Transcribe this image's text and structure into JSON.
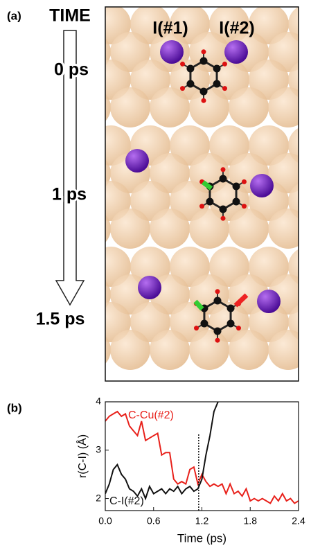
{
  "panel_a": {
    "label": "(a)",
    "time_title": "TIME",
    "times": [
      "0 ps",
      "1 ps",
      "1.5 ps"
    ],
    "atom_labels": [
      "I(#1)",
      "I(#2)"
    ]
  },
  "panel_b": {
    "label": "(b)"
  },
  "chart_data": {
    "type": "line",
    "xlabel": "Time (ps)",
    "ylabel": "r(C-I) (Å)",
    "x": [
      0,
      0.05,
      0.1,
      0.15,
      0.2,
      0.25,
      0.3,
      0.35,
      0.4,
      0.45,
      0.5,
      0.55,
      0.6,
      0.65,
      0.7,
      0.75,
      0.8,
      0.85,
      0.9,
      0.95,
      1.0,
      1.05,
      1.1,
      1.15,
      1.2,
      1.25,
      1.3,
      1.35,
      1.4,
      1.45,
      1.5,
      1.55,
      1.6,
      1.65,
      1.7,
      1.75,
      1.8,
      1.85,
      1.9,
      1.95,
      2.0,
      2.05,
      2.1,
      2.15,
      2.2,
      2.25,
      2.3,
      2.35,
      2.4
    ],
    "series": [
      {
        "name": "C-Cu(#2)",
        "color": "#e8201a",
        "values": [
          3.6,
          3.7,
          3.75,
          3.8,
          3.7,
          3.75,
          3.5,
          3.4,
          3.3,
          3.6,
          3.2,
          3.25,
          3.3,
          3.35,
          2.9,
          2.95,
          2.95,
          2.4,
          2.3,
          2.35,
          2.3,
          2.6,
          2.65,
          2.3,
          2.5,
          2.35,
          2.25,
          2.3,
          2.25,
          2.3,
          2.1,
          2.3,
          2.1,
          2.15,
          2.05,
          2.2,
          1.95,
          2.0,
          1.95,
          2.0,
          1.95,
          1.9,
          2.05,
          1.95,
          2.1,
          1.95,
          2.0,
          1.9,
          1.95
        ]
      },
      {
        "name": "C-I(#2)",
        "color": "#111111",
        "values": [
          2.1,
          2.3,
          2.6,
          2.7,
          2.5,
          2.4,
          2.2,
          2.15,
          2.05,
          2.2,
          2.0,
          2.25,
          2.1,
          2.15,
          2.2,
          2.1,
          2.2,
          2.15,
          2.25,
          2.1,
          2.2,
          2.25,
          2.15,
          2.2,
          2.4,
          2.9,
          3.3,
          3.8,
          4.0,
          null,
          null,
          null,
          null,
          null,
          null,
          null,
          null,
          null,
          null,
          null,
          null,
          null,
          null,
          null,
          null,
          null,
          null,
          null,
          null
        ]
      }
    ],
    "xlim": [
      0,
      2.4
    ],
    "ylim": [
      1.75,
      4
    ],
    "xticks": [
      {
        "value": 0,
        "label": "0.0"
      },
      0.6,
      1.2,
      1.8,
      2.4
    ],
    "yticks": [
      2,
      3,
      4
    ],
    "vline": 1.16
  }
}
